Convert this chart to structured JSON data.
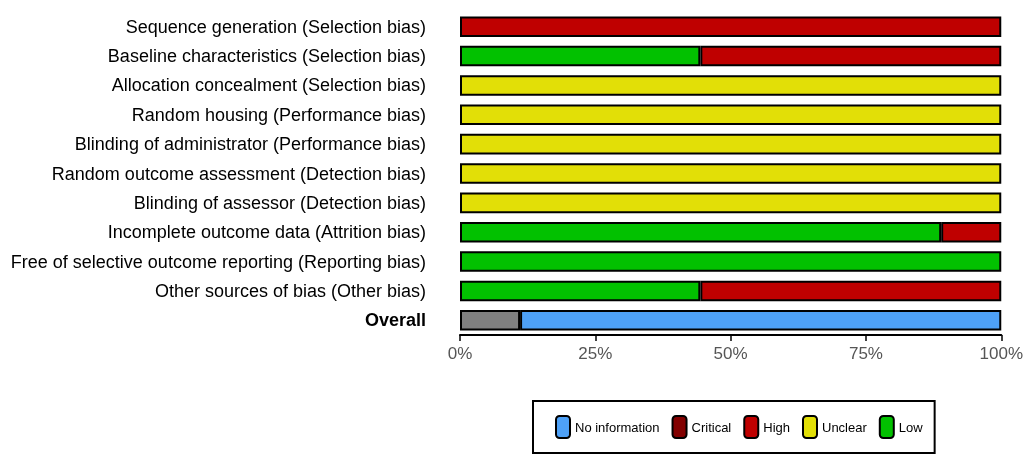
{
  "chart_data": {
    "type": "bar",
    "orientation": "horizontal",
    "stacked": true,
    "categories": [
      "Sequence generation (Selection bias)",
      "Baseline characteristics (Selection bias)",
      "Allocation concealment (Selection bias)",
      "Random housing (Performance bias)",
      "Blinding of administrator (Performance bias)",
      "Random outcome assessment (Detection bias)",
      "Blinding of assessor (Detection bias)",
      "Incomplete outcome data (Attrition bias)",
      "Free of selective outcome reporting (Reporting bias)",
      "Other sources of bias (Other bias)",
      "Overall"
    ],
    "series": [
      {
        "color": "#808080",
        "values": [
          null,
          null,
          null,
          null,
          null,
          null,
          null,
          null,
          null,
          null,
          11.1
        ]
      },
      {
        "name": "Low",
        "color": "#02c100",
        "values": [
          null,
          44.4,
          null,
          null,
          null,
          null,
          null,
          88.9,
          100,
          44.4,
          null
        ]
      },
      {
        "name": "Unclear",
        "color": "#e2df07",
        "values": [
          null,
          null,
          100,
          100,
          100,
          100,
          100,
          null,
          null,
          null,
          null
        ]
      },
      {
        "name": "High",
        "color": "#bf0000",
        "values": [
          100,
          55.6,
          null,
          null,
          null,
          null,
          null,
          11.1,
          null,
          55.6,
          null
        ]
      },
      {
        "name": "Critical",
        "color": "#820000",
        "values": [
          null,
          null,
          null,
          null,
          null,
          null,
          null,
          null,
          null,
          null,
          null
        ]
      },
      {
        "name": "No information",
        "color": "#4ea1f7",
        "values": [
          null,
          null,
          null,
          null,
          null,
          null,
          null,
          null,
          null,
          null,
          88.9
        ]
      }
    ],
    "xlim": [
      0,
      100
    ],
    "xticks": [
      {
        "value": 0,
        "label": "0%"
      },
      {
        "value": 25,
        "label": "25%"
      },
      {
        "value": 50,
        "label": "50%"
      },
      {
        "value": 75,
        "label": "75%"
      },
      {
        "value": 100,
        "label": "100%"
      }
    ],
    "grid": false,
    "legend": "bottom"
  }
}
